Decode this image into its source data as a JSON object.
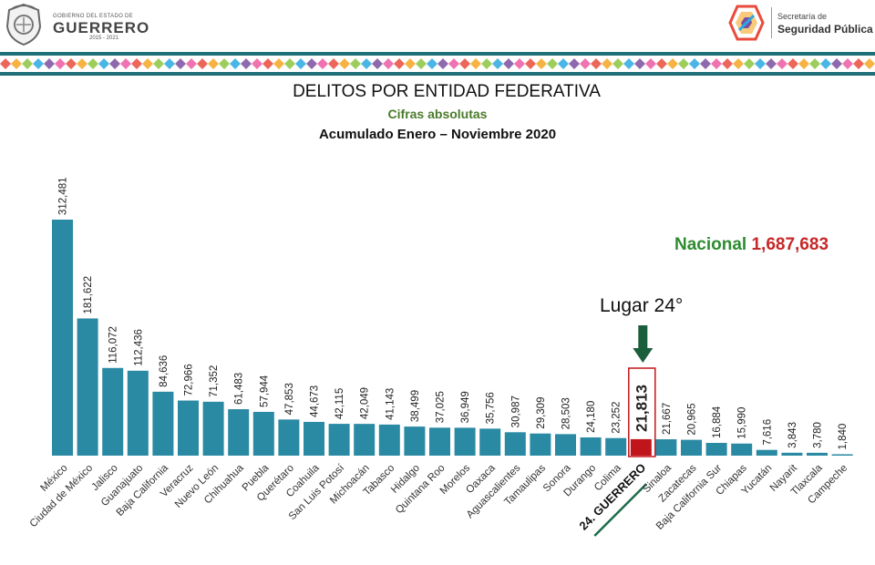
{
  "header": {
    "gov_line1": "GOBIERNO DEL ESTADO DE",
    "gov_line2": "GUERRERO",
    "gov_years": "2015 - 2021",
    "ssp_line1": "Secretaría de",
    "ssp_line2": "Seguridad Pública",
    "band_colors": [
      "#e94b3c",
      "#f5a623",
      "#8cc63f",
      "#2aa9e0",
      "#7b4fa0",
      "#ec5ba2"
    ]
  },
  "chart_data": {
    "type": "bar",
    "title": "DELITOS POR ENTIDAD FEDERATIVA",
    "subtitle": "Cifras absolutas",
    "period": "Acumulado Enero – Noviembre 2020",
    "categories": [
      "México",
      "Ciudad de México",
      "Jalisco",
      "Guanajuato",
      "Baja California",
      "Veracruz",
      "Nuevo León",
      "Chihuahua",
      "Puebla",
      "Querétaro",
      "Coahuila",
      "San Luis Potosí",
      "Michoacán",
      "Tabasco",
      "Hidalgo",
      "Quintana Roo",
      "Morelos",
      "Oaxaca",
      "Aguascalientes",
      "Tamaulipas",
      "Sonora",
      "Durango",
      "Colima",
      "24. GUERRERO",
      "Sinaloa",
      "Zacatecas",
      "Baja California Sur",
      "Chiapas",
      "Yucatán",
      "Nayarit",
      "Tlaxcala",
      "Campeche"
    ],
    "values": [
      312481,
      181622,
      116072,
      112436,
      84636,
      72966,
      71352,
      61483,
      57944,
      47853,
      44673,
      42115,
      42049,
      41143,
      38499,
      37025,
      36949,
      35756,
      30987,
      29309,
      28503,
      24180,
      23252,
      21813,
      21667,
      20965,
      16884,
      15990,
      7616,
      3843,
      3780,
      1840
    ],
    "value_labels": [
      "312,481",
      "181,622",
      "116,072",
      "112,436",
      "84,636",
      "72,966",
      "71,352",
      "61,483",
      "57,944",
      "47,853",
      "44,673",
      "42,115",
      "42,049",
      "41,143",
      "38,499",
      "37,025",
      "36,949",
      "35,756",
      "30,987",
      "29,309",
      "28,503",
      "24,180",
      "23,252",
      "21,813",
      "21,667",
      "20,965",
      "16,884",
      "15,990",
      "7,616",
      "3,843",
      "3,780",
      "1,840"
    ],
    "highlight_index": 23,
    "bar_color": "#2a8aa3",
    "highlight_color": "#c0161b",
    "highlight_label_color": "#1e6b4a",
    "national_label": "Nacional",
    "national_value": "1,687,683",
    "rank_label": "Lugar 24°",
    "ylim": [
      0,
      312481
    ]
  }
}
